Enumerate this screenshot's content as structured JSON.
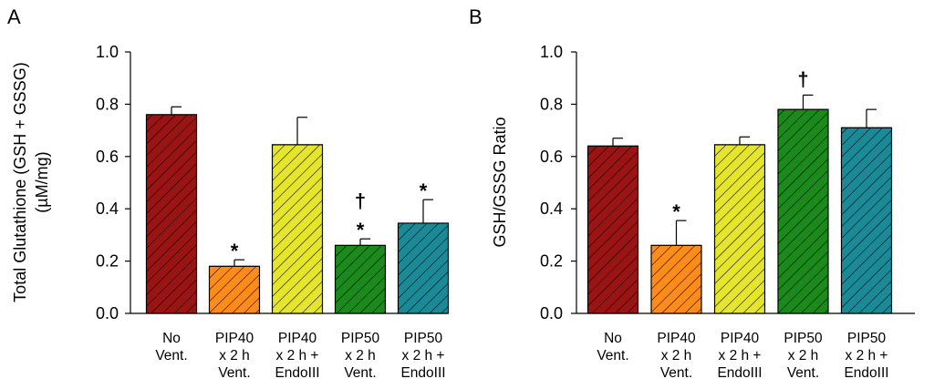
{
  "chart_data": [
    {
      "panel": "A",
      "type": "bar",
      "ylabel_line1": "Total Glutathione (GSH + GSSG)",
      "ylabel_line2": "(µM/mg)",
      "ylim": [
        0,
        1.0
      ],
      "yticks": [
        "0.0",
        "0.2",
        "0.4",
        "0.6",
        "0.8",
        "1.0"
      ],
      "categories": [
        [
          "No",
          "Vent.",
          ""
        ],
        [
          "PIP40",
          "x 2 h",
          "Vent."
        ],
        [
          "PIP40",
          "x 2 h  +",
          "EndoIII"
        ],
        [
          "PIP50",
          "x 2 h",
          "Vent."
        ],
        [
          "PIP50",
          "x 2 h  +",
          "EndoIII"
        ]
      ],
      "values": [
        0.76,
        0.18,
        0.645,
        0.26,
        0.345
      ],
      "errors": [
        0.03,
        0.025,
        0.105,
        0.025,
        0.09
      ],
      "annotations": [
        [],
        [
          "*"
        ],
        [],
        [
          "†",
          "*"
        ],
        [
          "*"
        ]
      ]
    },
    {
      "panel": "B",
      "type": "bar",
      "ylabel_line1": "GSH/GSSG Ratio",
      "ylabel_line2": "",
      "ylim": [
        0,
        1.0
      ],
      "yticks": [
        "0.0",
        "0.2",
        "0.4",
        "0.6",
        "0.8",
        "1.0"
      ],
      "categories": [
        [
          "No",
          "Vent.",
          ""
        ],
        [
          "PIP40",
          "x 2 h",
          "Vent."
        ],
        [
          "PIP40",
          "x 2 h  +",
          "EndoIII"
        ],
        [
          "PIP50",
          "x 2 h",
          "Vent."
        ],
        [
          "PIP50",
          "x 2 h  +",
          "EndoIII"
        ]
      ],
      "values": [
        0.64,
        0.26,
        0.645,
        0.78,
        0.71
      ],
      "errors": [
        0.03,
        0.095,
        0.03,
        0.055,
        0.07
      ],
      "annotations": [
        [],
        [
          "*"
        ],
        [],
        [
          "†"
        ],
        []
      ]
    }
  ],
  "colors": {
    "bar_fills": [
      "#9b1414",
      "#ff8c1a",
      "#e5e52e",
      "#1a8a1a",
      "#1a8a96"
    ],
    "hatch": "#000000",
    "axis": "#000000"
  }
}
